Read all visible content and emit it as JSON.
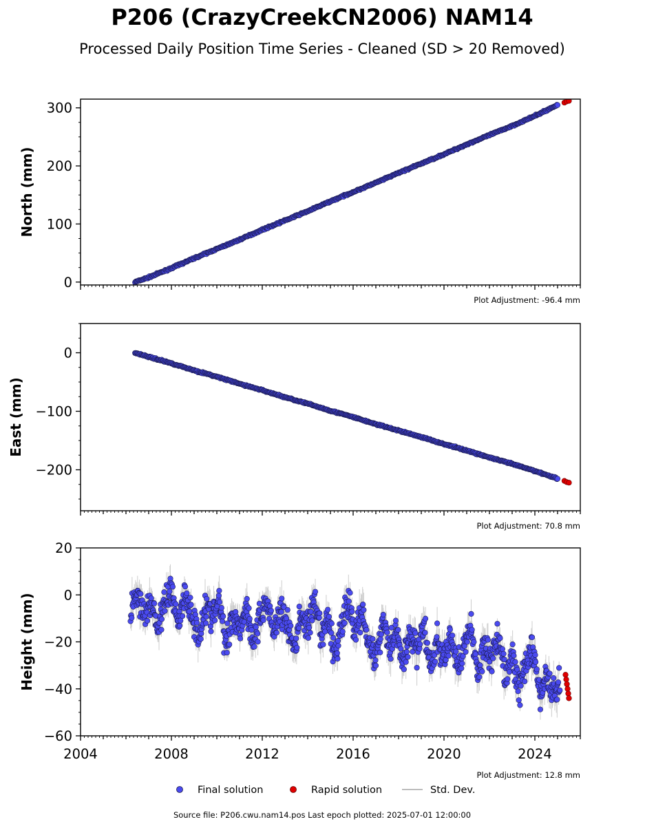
{
  "title": "P206 (CrazyCreekCN2006) NAM14",
  "subtitle": "Processed Daily Position Time Series - Cleaned (SD > 20 Removed)",
  "colors": {
    "final": "#4a4af0",
    "rapid": "#e00000",
    "edge": "#1a1a4a",
    "std": "#bdbdbd"
  },
  "legend": {
    "final": "Final solution",
    "rapid": "Rapid solution",
    "std": "Std. Dev."
  },
  "footer": "Source file: P206.cwu.nam14.pos  Last epoch plotted: 2025-07-01 12:00:00",
  "chart_data": [
    {
      "type": "scatter",
      "ylabel": "North (mm)",
      "adjustment": "Plot Adjustment: -96.4 mm",
      "xlim": [
        2004,
        2026
      ],
      "ylim": [
        -5,
        315
      ],
      "yticks": [
        0,
        100,
        200,
        300
      ],
      "ytick_labels": [
        "0",
        "100",
        "200",
        "300"
      ],
      "show_xtick_labels": false,
      "series": [
        {
          "name": "Final solution",
          "x": [
            2006.4,
            2007.0,
            2008.0,
            2009.0,
            2010.0,
            2011.0,
            2012.0,
            2013.0,
            2014.0,
            2015.0,
            2016.0,
            2017.0,
            2018.0,
            2019.0,
            2020.0,
            2021.0,
            2022.0,
            2023.0,
            2024.0,
            2025.0
          ],
          "y": [
            0,
            8,
            24,
            41,
            57,
            73,
            90,
            106,
            122,
            139,
            155,
            171,
            188,
            204,
            220,
            237,
            253,
            269,
            286,
            305
          ]
        },
        {
          "name": "Rapid solution",
          "x": [
            2025.3,
            2025.4,
            2025.5
          ],
          "y": [
            309,
            311,
            312
          ]
        }
      ]
    },
    {
      "type": "scatter",
      "ylabel": "East (mm)",
      "adjustment": "Plot Adjustment: 70.8 mm",
      "xlim": [
        2004,
        2026
      ],
      "ylim": [
        -270,
        50
      ],
      "yticks": [
        0,
        -100,
        -200
      ],
      "ytick_labels": [
        "0",
        "−100",
        "−200"
      ],
      "show_xtick_labels": false,
      "series": [
        {
          "name": "Final solution",
          "x": [
            2006.4,
            2007.0,
            2008.0,
            2009.0,
            2010.0,
            2011.0,
            2012.0,
            2013.0,
            2014.0,
            2015.0,
            2016.0,
            2017.0,
            2018.0,
            2019.0,
            2020.0,
            2021.0,
            2022.0,
            2023.0,
            2024.0,
            2025.0
          ],
          "y": [
            0,
            -7,
            -18,
            -30,
            -41,
            -53,
            -64,
            -76,
            -87,
            -99,
            -110,
            -122,
            -133,
            -144,
            -156,
            -167,
            -179,
            -190,
            -202,
            -215
          ]
        },
        {
          "name": "Rapid solution",
          "x": [
            2025.3,
            2025.4,
            2025.5
          ],
          "y": [
            -219,
            -221,
            -222
          ]
        }
      ]
    },
    {
      "type": "scatter",
      "ylabel": "Height (mm)",
      "adjustment": "Plot Adjustment: 12.8 mm",
      "xlim": [
        2004,
        2026
      ],
      "ylim": [
        -60,
        20
      ],
      "yticks": [
        20,
        0,
        -20,
        -40,
        -60
      ],
      "ytick_labels": [
        "20",
        "0",
        "−20",
        "−40",
        "−60"
      ],
      "show_xtick_labels": true,
      "xticks": [
        2004,
        2008,
        2012,
        2016,
        2020,
        2024
      ],
      "xtick_labels": [
        "2004",
        "2008",
        "2012",
        "2016",
        "2020",
        "2024"
      ],
      "series": [
        {
          "name": "Final solution",
          "x": [
            2006.2,
            2006.5,
            2006.8,
            2007.1,
            2007.4,
            2007.7,
            2008.0,
            2008.3,
            2008.6,
            2008.9,
            2009.2,
            2009.5,
            2009.8,
            2010.1,
            2010.4,
            2010.7,
            2011.0,
            2011.3,
            2011.6,
            2011.9,
            2012.2,
            2012.5,
            2012.8,
            2013.1,
            2013.4,
            2013.7,
            2014.0,
            2014.3,
            2014.6,
            2014.9,
            2015.2,
            2015.5,
            2015.8,
            2016.1,
            2016.4,
            2016.7,
            2017.0,
            2017.3,
            2017.6,
            2017.9,
            2018.2,
            2018.5,
            2018.8,
            2019.1,
            2019.4,
            2019.7,
            2020.0,
            2020.3,
            2020.6,
            2020.9,
            2021.2,
            2021.5,
            2021.8,
            2022.1,
            2022.4,
            2022.7,
            2023.0,
            2023.3,
            2023.6,
            2023.9,
            2024.2,
            2024.5,
            2024.8,
            2025.1
          ],
          "y": [
            -8,
            2,
            -10,
            -2,
            -14,
            -4,
            3,
            -12,
            0,
            -8,
            -18,
            -4,
            -10,
            -2,
            -22,
            -8,
            -14,
            -5,
            -20,
            -10,
            -2,
            -16,
            -6,
            -12,
            -24,
            -8,
            -14,
            -4,
            -18,
            -10,
            -26,
            -12,
            -4,
            -16,
            -6,
            -20,
            -28,
            -10,
            -22,
            -14,
            -30,
            -16,
            -24,
            -12,
            -32,
            -20,
            -28,
            -18,
            -30,
            -22,
            -14,
            -34,
            -20,
            -28,
            -16,
            -36,
            -26,
            -40,
            -30,
            -22,
            -44,
            -34,
            -42,
            -38
          ]
        },
        {
          "name": "Rapid solution",
          "x": [
            2025.35,
            2025.38,
            2025.41,
            2025.44,
            2025.47,
            2025.5
          ],
          "y": [
            -34,
            -36,
            -38,
            -40,
            -42,
            -44
          ]
        }
      ]
    }
  ]
}
